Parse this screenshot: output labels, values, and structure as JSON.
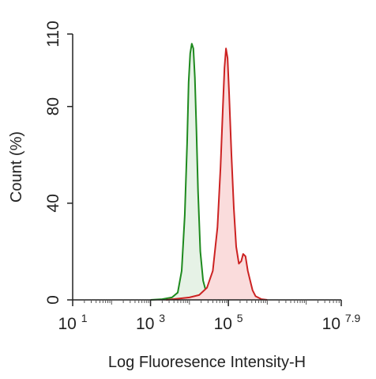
{
  "chart_data": {
    "type": "area",
    "title": "",
    "xlabel": "Log Fluoresence Intensity-H",
    "ylabel": "Count  (%)",
    "x_scale": "log10",
    "xlim": [
      1,
      7.9
    ],
    "ylim": [
      0,
      110
    ],
    "x_ticks": [
      {
        "value": 1,
        "base": "10",
        "exp": "1"
      },
      {
        "value": 3,
        "base": "10",
        "exp": "3"
      },
      {
        "value": 5,
        "base": "10",
        "exp": "5"
      },
      {
        "value": 7.9,
        "base": "10",
        "exp": "7.9"
      }
    ],
    "y_ticks": [
      0,
      40,
      80,
      110
    ],
    "grid": false,
    "legend": "none",
    "series": [
      {
        "color": "#1e8a1e",
        "fill": "#e6f2e6",
        "x": [
          3.0,
          3.3,
          3.55,
          3.7,
          3.8,
          3.88,
          3.94,
          3.98,
          4.02,
          4.06,
          4.1,
          4.14,
          4.18,
          4.22,
          4.28,
          4.35,
          4.45,
          4.6,
          4.8
        ],
        "y": [
          0,
          0.3,
          1,
          3,
          12,
          35,
          65,
          90,
          102,
          106,
          104,
          92,
          70,
          45,
          20,
          8,
          2,
          0.5,
          0
        ]
      },
      {
        "color": "#cc2222",
        "fill": "#fadcdc",
        "x": [
          3.4,
          3.7,
          4.0,
          4.25,
          4.45,
          4.6,
          4.72,
          4.8,
          4.86,
          4.9,
          4.94,
          4.98,
          5.02,
          5.08,
          5.14,
          5.2,
          5.27,
          5.33,
          5.38,
          5.44,
          5.5,
          5.56,
          5.62,
          5.7,
          5.85,
          6.0
        ],
        "y": [
          0,
          0.5,
          1,
          2,
          5,
          12,
          30,
          55,
          80,
          96,
          104,
          100,
          85,
          60,
          38,
          22,
          15,
          16,
          19,
          18,
          12,
          8,
          4,
          1.5,
          0.3,
          0
        ]
      }
    ]
  }
}
